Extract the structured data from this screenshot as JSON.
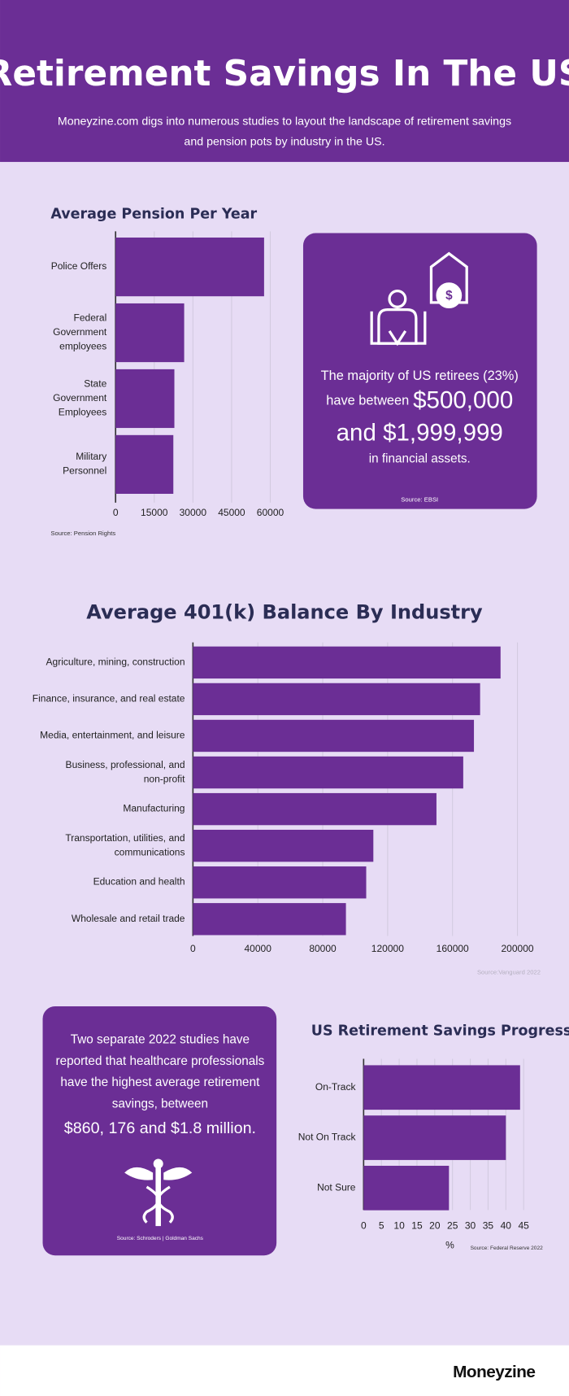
{
  "header": {
    "title": "Retirement Savings In The US",
    "subtitle_lines": [
      "Moneyzine.com digs into numerous studies to layout the landscape of retirement savings",
      "and pension pots by industry in the US."
    ]
  },
  "chart_data": [
    {
      "type": "bar",
      "orientation": "horizontal",
      "title": "Average Pension Per Year",
      "categories": [
        "Police Offers",
        "Federal Government employees",
        "State Government Employees",
        "Military Personnel"
      ],
      "values": [
        57600,
        26600,
        22800,
        22400
      ],
      "color": "#6b2e95",
      "xlim": [
        0,
        60000
      ],
      "xticks": [
        0,
        15000,
        30000,
        45000,
        60000
      ],
      "grid": true,
      "source": "Source: Pension Rights"
    },
    {
      "type": "bar",
      "orientation": "horizontal",
      "title": "Average 401(k) Balance By Industry",
      "categories": [
        "Agriculture, mining, construction",
        "Finance, insurance, and real estate",
        "Media, entertainment, and leisure",
        "Business, professional, and non-profit",
        "Manufacturing",
        "Transportation, utilities, and communications",
        "Education and health",
        "Wholesale and retail trade"
      ],
      "values": [
        189600,
        177000,
        173200,
        166600,
        150100,
        111200,
        106800,
        94300
      ],
      "color": "#6b2e95",
      "xlim": [
        0,
        200000
      ],
      "xticks": [
        0,
        40000,
        80000,
        120000,
        160000,
        200000
      ],
      "grid": true,
      "source": "Source:Vanguard 2022"
    },
    {
      "type": "bar",
      "orientation": "horizontal",
      "title": "US Retirement Savings Progress",
      "categories": [
        "On-Track",
        "Not On Track",
        "Not Sure"
      ],
      "values": [
        44,
        40,
        24
      ],
      "color": "#6b2e95",
      "xlabel": "%",
      "xlim": [
        0,
        45
      ],
      "xticks": [
        0,
        5,
        10,
        15,
        20,
        25,
        30,
        35,
        40,
        45
      ],
      "grid": true,
      "source": "Source: Federal Reserve 2022"
    }
  ],
  "callout1": {
    "line1": "The majority of US retirees (23%)",
    "line2_small": "have between",
    "line2_big": "$500,000",
    "line3": "and $1,999,999",
    "line4": "in financial assets.",
    "source": "Source: EBSI"
  },
  "callout2": {
    "lines": [
      "Two separate 2022 studies have",
      "reported that healthcare professionals",
      "have the highest average retirement",
      "savings, between"
    ],
    "big": "$860, 176 and $1.8 million.",
    "source": "Source: Schroders | Goldman Sachs"
  },
  "footer": {
    "brand": "Moneyzine"
  }
}
